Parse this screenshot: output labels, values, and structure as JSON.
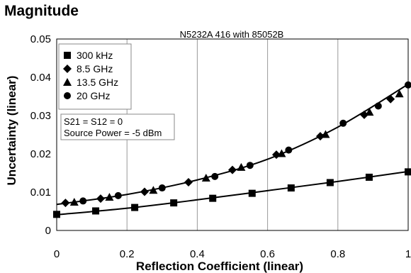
{
  "heading": "Magnitude",
  "chart_data": {
    "type": "scatter",
    "title": "N5232A 416 with 85052B",
    "xlabel": "Reflection Coefficient (linear)",
    "ylabel": "Uncertainty (linear)",
    "xlim": [
      0,
      1
    ],
    "ylim": [
      0,
      0.05
    ],
    "xticks": [
      "0",
      "0.2",
      "0.4",
      "0.6",
      "0.8",
      "1"
    ],
    "yticks": [
      "0",
      "0.01",
      "0.02",
      "0.03",
      "0.04",
      "0.05"
    ],
    "grid": "vertical",
    "legend_position": "top-left",
    "series": [
      {
        "name": "300 kHz",
        "marker": "square",
        "x": [
          0.0,
          0.111,
          0.222,
          0.333,
          0.444,
          0.556,
          0.667,
          0.778,
          0.889,
          1.0
        ],
        "y": [
          0.0042,
          0.0051,
          0.006,
          0.0072,
          0.0084,
          0.0097,
          0.0111,
          0.0125,
          0.0139,
          0.0153
        ]
      },
      {
        "name": "8.5 GHz",
        "marker": "diamond",
        "x": [
          0.025,
          0.125,
          0.25,
          0.375,
          0.5,
          0.625,
          0.75,
          0.875,
          0.95
        ],
        "y": [
          0.0072,
          0.0083,
          0.0101,
          0.0126,
          0.0158,
          0.0198,
          0.0246,
          0.0302,
          0.0343
        ]
      },
      {
        "name": "13.5 GHz",
        "marker": "triangle",
        "x": [
          0.05,
          0.15,
          0.275,
          0.425,
          0.525,
          0.64,
          0.765,
          0.89,
          0.975
        ],
        "y": [
          0.0074,
          0.0087,
          0.0105,
          0.0137,
          0.0165,
          0.0201,
          0.0251,
          0.0309,
          0.0357
        ]
      },
      {
        "name": "20 GHz",
        "marker": "circle",
        "x": [
          0.075,
          0.175,
          0.3,
          0.45,
          0.55,
          0.66,
          0.815,
          0.915,
          1.0
        ],
        "y": [
          0.0077,
          0.0091,
          0.0111,
          0.0141,
          0.017,
          0.021,
          0.028,
          0.0325,
          0.038
        ]
      }
    ],
    "fit_lines": [
      {
        "x": [
          0,
          0.2,
          0.4,
          0.6,
          0.8,
          1.0
        ],
        "y": [
          0.0041,
          0.0058,
          0.008,
          0.0104,
          0.0128,
          0.0154
        ]
      },
      {
        "x": [
          0,
          0.2,
          0.4,
          0.6,
          0.8,
          1.0
        ],
        "y": [
          0.0068,
          0.0094,
          0.0132,
          0.0186,
          0.027,
          0.0382
        ]
      }
    ],
    "annotation": [
      "S21 = S12 = 0",
      "Source Power = -5 dBm"
    ]
  }
}
